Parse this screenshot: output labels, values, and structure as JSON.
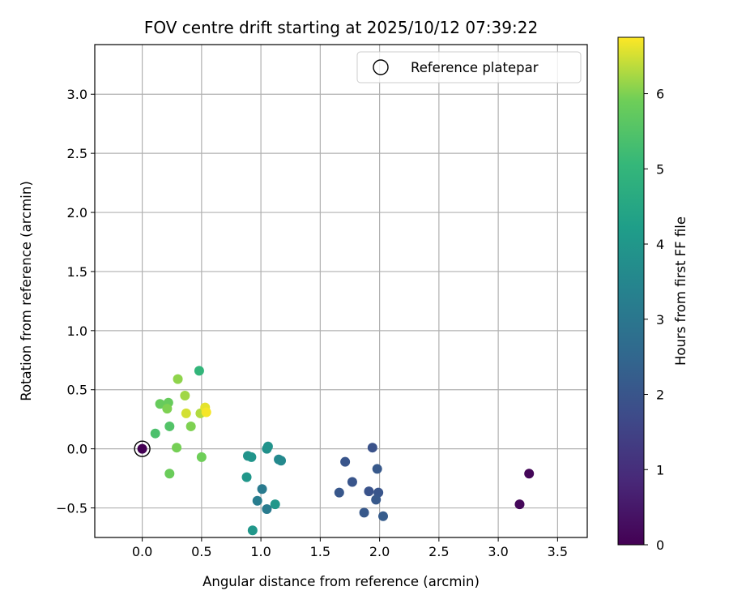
{
  "chart_data": {
    "type": "scatter",
    "title": "FOV centre drift starting at 2025/10/12 07:39:22",
    "xlabel": "Angular distance from reference (arcmin)",
    "ylabel": "Rotation from reference (arcmin)",
    "xlim": [
      -0.4,
      3.75
    ],
    "ylim": [
      -0.75,
      3.42
    ],
    "x_ticks": [
      0.0,
      0.5,
      1.0,
      1.5,
      2.0,
      2.5,
      3.0,
      3.5
    ],
    "x_tick_labels": [
      "0.0",
      "0.5",
      "1.0",
      "1.5",
      "2.0",
      "2.5",
      "3.0",
      "3.5"
    ],
    "y_ticks": [
      -0.5,
      0.0,
      0.5,
      1.0,
      1.5,
      2.0,
      2.5,
      3.0
    ],
    "y_tick_labels": [
      "−0.5",
      "0.0",
      "0.5",
      "1.0",
      "1.5",
      "2.0",
      "2.5",
      "3.0"
    ],
    "grid": true,
    "legend": {
      "placement": "top-right",
      "entries": [
        {
          "label": "Reference platepar",
          "marker": "open-circle"
        }
      ]
    },
    "reference_point": {
      "x": 0.0,
      "y": 0.0
    },
    "colorbar": {
      "label": "Hours from first FF file",
      "colormap": "viridis",
      "range": [
        0,
        6.75
      ],
      "ticks": [
        0,
        1,
        2,
        3,
        4,
        5,
        6
      ],
      "tick_labels": [
        "0",
        "1",
        "2",
        "3",
        "4",
        "5",
        "6"
      ]
    },
    "points": [
      {
        "x": 0.0,
        "y": 0.0,
        "hours": 0.0
      },
      {
        "x": 3.26,
        "y": -0.21,
        "hours": 0.1
      },
      {
        "x": 3.18,
        "y": -0.47,
        "hours": 0.15
      },
      {
        "x": 1.94,
        "y": 0.01,
        "hours": 1.9
      },
      {
        "x": 1.71,
        "y": -0.11,
        "hours": 2.0
      },
      {
        "x": 1.98,
        "y": -0.17,
        "hours": 2.1
      },
      {
        "x": 1.77,
        "y": -0.28,
        "hours": 2.0
      },
      {
        "x": 1.66,
        "y": -0.37,
        "hours": 2.05
      },
      {
        "x": 1.91,
        "y": -0.36,
        "hours": 1.95
      },
      {
        "x": 1.99,
        "y": -0.37,
        "hours": 2.0
      },
      {
        "x": 1.97,
        "y": -0.43,
        "hours": 2.1
      },
      {
        "x": 1.87,
        "y": -0.54,
        "hours": 2.1
      },
      {
        "x": 2.03,
        "y": -0.57,
        "hours": 2.2
      },
      {
        "x": 1.01,
        "y": -0.34,
        "hours": 3.1
      },
      {
        "x": 0.97,
        "y": -0.44,
        "hours": 3.2
      },
      {
        "x": 1.05,
        "y": -0.51,
        "hours": 3.15
      },
      {
        "x": 1.15,
        "y": -0.09,
        "hours": 3.6
      },
      {
        "x": 1.17,
        "y": -0.1,
        "hours": 3.6
      },
      {
        "x": 1.05,
        "y": 0.0,
        "hours": 3.8
      },
      {
        "x": 1.06,
        "y": 0.02,
        "hours": 3.9
      },
      {
        "x": 0.89,
        "y": -0.06,
        "hours": 3.9
      },
      {
        "x": 0.92,
        "y": -0.07,
        "hours": 3.95
      },
      {
        "x": 0.88,
        "y": -0.24,
        "hours": 4.0
      },
      {
        "x": 1.12,
        "y": -0.47,
        "hours": 4.0
      },
      {
        "x": 0.93,
        "y": -0.69,
        "hours": 4.0
      },
      {
        "x": 0.48,
        "y": 0.66,
        "hours": 5.0
      },
      {
        "x": 0.11,
        "y": 0.13,
        "hours": 5.4
      },
      {
        "x": 0.23,
        "y": 0.19,
        "hours": 5.5
      },
      {
        "x": 0.15,
        "y": 0.38,
        "hours": 5.8
      },
      {
        "x": 0.22,
        "y": 0.39,
        "hours": 5.8
      },
      {
        "x": 0.23,
        "y": -0.21,
        "hours": 5.85
      },
      {
        "x": 0.5,
        "y": -0.07,
        "hours": 5.9
      },
      {
        "x": 0.29,
        "y": 0.01,
        "hours": 5.95
      },
      {
        "x": 0.41,
        "y": 0.19,
        "hours": 6.0
      },
      {
        "x": 0.21,
        "y": 0.34,
        "hours": 6.0
      },
      {
        "x": 0.3,
        "y": 0.59,
        "hours": 6.1
      },
      {
        "x": 0.36,
        "y": 0.45,
        "hours": 6.2
      },
      {
        "x": 0.49,
        "y": 0.3,
        "hours": 6.3
      },
      {
        "x": 0.37,
        "y": 0.3,
        "hours": 6.5
      },
      {
        "x": 0.53,
        "y": 0.35,
        "hours": 6.6
      },
      {
        "x": 0.54,
        "y": 0.31,
        "hours": 6.7
      }
    ]
  }
}
